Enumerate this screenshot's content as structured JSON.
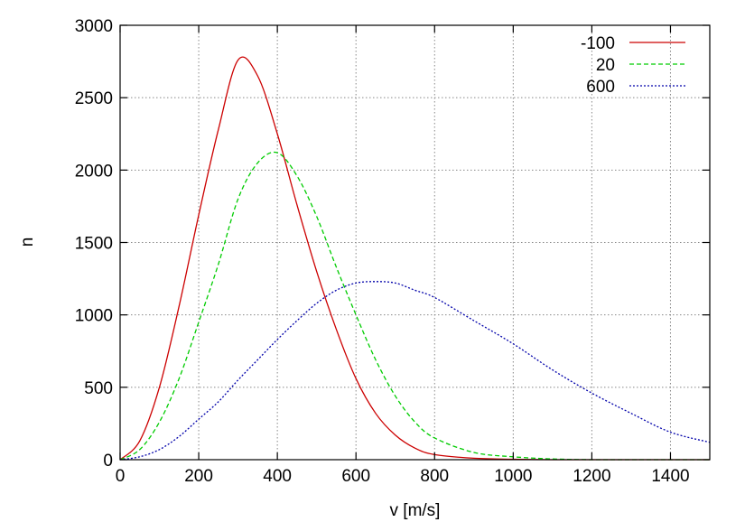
{
  "chart_data": {
    "type": "line",
    "xlabel": "v [m/s]",
    "ylabel": "n",
    "xlim": [
      0,
      1500
    ],
    "ylim": [
      0,
      3000
    ],
    "xticks": [
      0,
      200,
      400,
      600,
      800,
      1000,
      1200,
      1400
    ],
    "yticks": [
      0,
      500,
      1000,
      1500,
      2000,
      2500,
      3000
    ],
    "grid": true,
    "legend_position": "top-right",
    "series": [
      {
        "name": "-100",
        "color": "#cc0000",
        "dash": "solid",
        "x": [
          0,
          50,
          100,
          150,
          200,
          250,
          300,
          350,
          400,
          450,
          500,
          550,
          600,
          650,
          700,
          750,
          800,
          900,
          1000,
          1100,
          1200,
          1300,
          1400,
          1500
        ],
        "y": [
          0,
          130,
          500,
          1060,
          1690,
          2280,
          2760,
          2650,
          2250,
          1760,
          1300,
          900,
          560,
          320,
          170,
          80,
          35,
          10,
          3,
          0,
          0,
          0,
          0,
          0
        ]
      },
      {
        "name": "20",
        "color": "#00cc00",
        "dash": "dashed",
        "x": [
          0,
          50,
          100,
          150,
          200,
          250,
          300,
          350,
          400,
          450,
          500,
          550,
          600,
          650,
          700,
          750,
          800,
          900,
          1000,
          1100,
          1200,
          1300,
          1400,
          1500
        ],
        "y": [
          0,
          70,
          260,
          560,
          950,
          1350,
          1800,
          2050,
          2120,
          1960,
          1680,
          1330,
          1000,
          690,
          440,
          260,
          150,
          50,
          20,
          5,
          0,
          0,
          0,
          0
        ]
      },
      {
        "name": "600",
        "color": "#0000aa",
        "dash": "dotted",
        "x": [
          0,
          50,
          100,
          150,
          200,
          250,
          300,
          350,
          400,
          450,
          500,
          550,
          600,
          650,
          700,
          750,
          800,
          900,
          1000,
          1100,
          1200,
          1300,
          1400,
          1500
        ],
        "y": [
          0,
          20,
          70,
          160,
          280,
          400,
          550,
          690,
          830,
          960,
          1080,
          1170,
          1220,
          1230,
          1220,
          1170,
          1120,
          960,
          800,
          620,
          460,
          320,
          190,
          120
        ]
      }
    ]
  }
}
